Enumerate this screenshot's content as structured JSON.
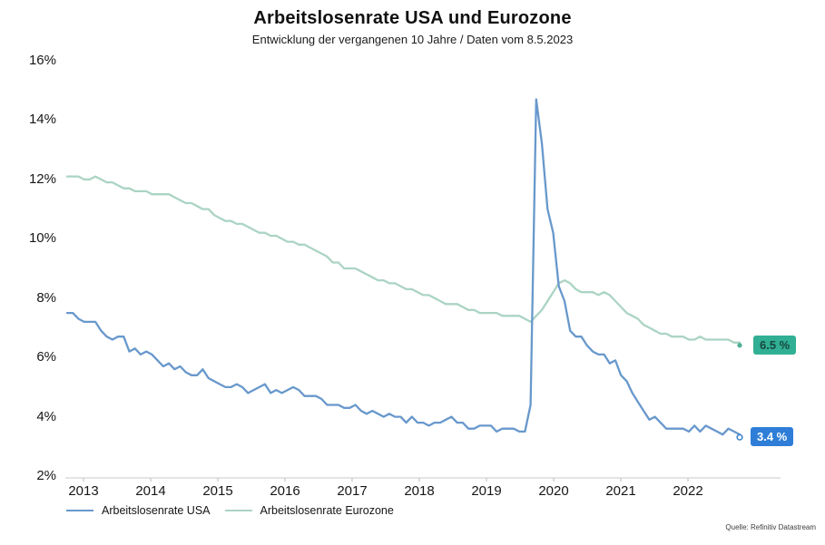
{
  "title": "Arbeitslosenrate USA und Eurozone",
  "subtitle": "Entwicklung der vergangenen 10 Jahre / Daten vom 8.5.2023",
  "source": "Quelle: Refinitiv Datastream",
  "legend": [
    {
      "label": "Arbeitslosenrate USA",
      "color": "#6898cc"
    },
    {
      "label": "Arbeitslosenrate Eurozone",
      "color": "#abd4c3"
    }
  ],
  "chart_data": {
    "type": "line",
    "title": "Arbeitslosenrate USA und Eurozone",
    "subtitle": "Entwicklung der vergangenen 10 Jahre / Daten vom 8.5.2023",
    "xlabel": "",
    "ylabel": "",
    "ylim": [
      2,
      16
    ],
    "yticks": [
      "16%",
      "14%",
      "12%",
      "10%",
      "8%",
      "6%",
      "4%",
      "2%"
    ],
    "ytick_values": [
      16,
      14,
      12,
      10,
      8,
      6,
      4,
      2
    ],
    "xticks": [
      "2013",
      "2014",
      "2015",
      "2016",
      "2017",
      "2018",
      "2019",
      "2020",
      "2021",
      "2022"
    ],
    "x_frequency": "monthly",
    "grid": false,
    "legend_position": "bottom",
    "series": [
      {
        "name": "Arbeitslosenrate USA",
        "color": "#6898cc",
        "end_value": 3.4,
        "values": [
          7.5,
          7.5,
          7.3,
          7.2,
          7.2,
          7.2,
          6.9,
          6.7,
          6.6,
          6.7,
          6.7,
          6.2,
          6.3,
          6.1,
          6.2,
          6.1,
          5.9,
          5.7,
          5.8,
          5.6,
          5.7,
          5.5,
          5.4,
          5.4,
          5.6,
          5.3,
          5.2,
          5.1,
          5.0,
          5.0,
          5.1,
          5.0,
          4.8,
          4.9,
          5.0,
          5.1,
          4.8,
          4.9,
          4.8,
          4.9,
          5.0,
          4.9,
          4.7,
          4.7,
          4.7,
          4.6,
          4.4,
          4.4,
          4.4,
          4.3,
          4.3,
          4.4,
          4.2,
          4.1,
          4.2,
          4.1,
          4.0,
          4.1,
          4.0,
          4.0,
          3.8,
          4.0,
          3.8,
          3.8,
          3.7,
          3.8,
          3.8,
          3.9,
          4.0,
          3.8,
          3.8,
          3.6,
          3.6,
          3.7,
          3.7,
          3.7,
          3.5,
          3.6,
          3.6,
          3.6,
          3.5,
          3.5,
          4.4,
          14.7,
          13.2,
          11.0,
          10.2,
          8.4,
          7.9,
          6.9,
          6.7,
          6.7,
          6.4,
          6.2,
          6.1,
          6.1,
          5.8,
          5.9,
          5.4,
          5.2,
          4.8,
          4.5,
          4.2,
          3.9,
          4.0,
          3.8,
          3.6,
          3.6,
          3.6,
          3.6,
          3.5,
          3.7,
          3.5,
          3.7,
          3.6,
          3.5,
          3.4,
          3.6,
          3.5,
          3.4
        ]
      },
      {
        "name": "Arbeitslosenrate Eurozone",
        "color": "#abd4c3",
        "end_value": 6.5,
        "values": [
          12.1,
          12.1,
          12.1,
          12.0,
          12.0,
          12.1,
          12.0,
          11.9,
          11.9,
          11.8,
          11.7,
          11.7,
          11.6,
          11.6,
          11.6,
          11.5,
          11.5,
          11.5,
          11.5,
          11.4,
          11.3,
          11.2,
          11.2,
          11.1,
          11.0,
          11.0,
          10.8,
          10.7,
          10.6,
          10.6,
          10.5,
          10.5,
          10.4,
          10.3,
          10.2,
          10.2,
          10.1,
          10.1,
          10.0,
          9.9,
          9.9,
          9.8,
          9.8,
          9.7,
          9.6,
          9.5,
          9.4,
          9.2,
          9.2,
          9.0,
          9.0,
          9.0,
          8.9,
          8.8,
          8.7,
          8.6,
          8.6,
          8.5,
          8.5,
          8.4,
          8.3,
          8.3,
          8.2,
          8.1,
          8.1,
          8.0,
          7.9,
          7.8,
          7.8,
          7.8,
          7.7,
          7.6,
          7.6,
          7.5,
          7.5,
          7.5,
          7.5,
          7.4,
          7.4,
          7.4,
          7.4,
          7.3,
          7.2,
          7.4,
          7.6,
          7.9,
          8.2,
          8.5,
          8.6,
          8.5,
          8.3,
          8.2,
          8.2,
          8.2,
          8.1,
          8.2,
          8.1,
          7.9,
          7.7,
          7.5,
          7.4,
          7.3,
          7.1,
          7.0,
          6.9,
          6.8,
          6.8,
          6.7,
          6.7,
          6.7,
          6.6,
          6.6,
          6.7,
          6.6,
          6.6,
          6.6,
          6.6,
          6.6,
          6.5,
          6.5
        ]
      }
    ],
    "annotations": [
      {
        "text": "6.5 %",
        "series": "Arbeitslosenrate Eurozone",
        "bg": "#30af94",
        "fg": "#17473d"
      },
      {
        "text": "3.4 %",
        "series": "Arbeitslosenrate USA",
        "bg": "#2e7ed8",
        "fg": "#ffffff"
      }
    ]
  }
}
